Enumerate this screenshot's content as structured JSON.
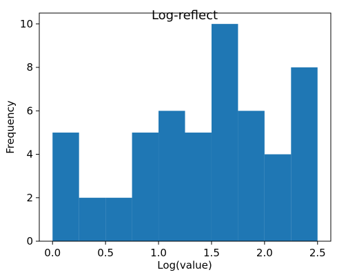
{
  "chart_data": {
    "type": "bar",
    "title": "Log-reflect",
    "xlabel": "Log(value)",
    "ylabel": "Frequency",
    "bin_edges": [
      0.0,
      0.25,
      0.5,
      0.75,
      1.0,
      1.25,
      1.5,
      1.75,
      2.0,
      2.25,
      2.5
    ],
    "values": [
      5,
      2,
      2,
      5,
      6,
      5,
      10,
      6,
      4,
      8
    ],
    "xlim": [
      -0.125,
      2.625
    ],
    "ylim": [
      0,
      10.5
    ],
    "xticks": [
      "0.0",
      "0.5",
      "1.0",
      "1.5",
      "2.0",
      "2.5"
    ],
    "yticks": [
      "0",
      "2",
      "4",
      "6",
      "8",
      "10"
    ],
    "bar_color": "#1f77b4",
    "grid": false,
    "legend": null
  }
}
